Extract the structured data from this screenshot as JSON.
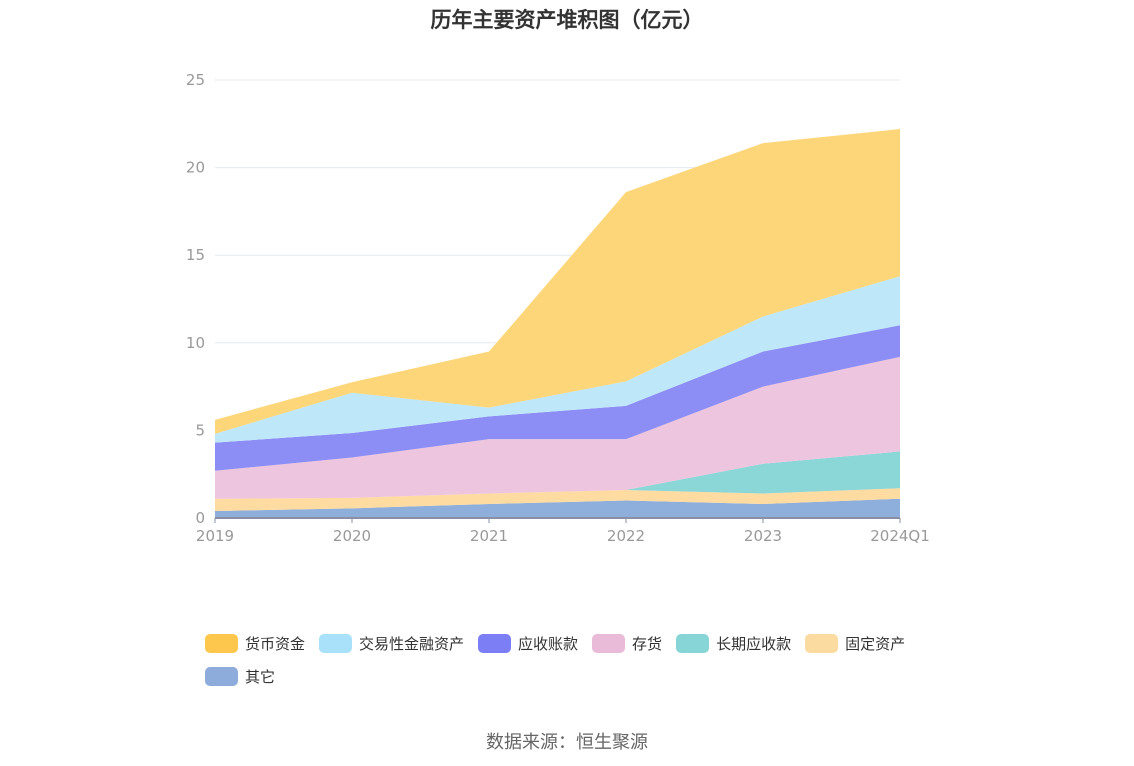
{
  "chart_data": {
    "type": "area",
    "stacked": true,
    "title": "历年主要资产堆积图（亿元）",
    "categories": [
      "2019",
      "2020",
      "2021",
      "2022",
      "2023",
      "2024Q1"
    ],
    "ylim": [
      0,
      25
    ],
    "yticks": [
      0,
      5,
      10,
      15,
      20,
      25
    ],
    "grid": true,
    "legend_position": "bottom",
    "series": [
      {
        "name": "其它",
        "color": "#8eaedc",
        "values": [
          0.4,
          0.55,
          0.8,
          1.0,
          0.8,
          1.1
        ]
      },
      {
        "name": "固定资产",
        "color": "#fddba1",
        "values": [
          0.7,
          0.6,
          0.6,
          0.6,
          0.6,
          0.6
        ]
      },
      {
        "name": "长期应收款",
        "color": "#8bd6d7",
        "values": [
          0.0,
          0.0,
          0.0,
          0.0,
          1.7,
          2.1
        ]
      },
      {
        "name": "存货",
        "color": "#eec5df",
        "values": [
          1.6,
          2.3,
          3.1,
          2.9,
          4.4,
          5.4
        ]
      },
      {
        "name": "应收账款",
        "color": "#8c8ef6",
        "values": [
          1.6,
          1.4,
          1.3,
          1.9,
          2.0,
          1.8
        ]
      },
      {
        "name": "交易性金融资产",
        "color": "#bfe7fa",
        "values": [
          0.5,
          2.3,
          0.5,
          1.4,
          2.0,
          2.8
        ]
      },
      {
        "name": "货币资金",
        "color": "#fdd679",
        "values": [
          0.8,
          0.6,
          3.2,
          10.8,
          9.9,
          8.4
        ]
      }
    ]
  },
  "legend": {
    "items": [
      {
        "label": "货币资金",
        "color": "#fcc74c"
      },
      {
        "label": "交易性金融资产",
        "color": "#a9e1fb"
      },
      {
        "label": "应收账款",
        "color": "#7b7ef5"
      },
      {
        "label": "存货",
        "color": "#e9bbd8"
      },
      {
        "label": "长期应收款",
        "color": "#87d5d6"
      },
      {
        "label": "固定资产",
        "color": "#fcdba0"
      },
      {
        "label": "其它",
        "color": "#8dacdb"
      }
    ]
  },
  "source": "数据来源：恒生聚源"
}
